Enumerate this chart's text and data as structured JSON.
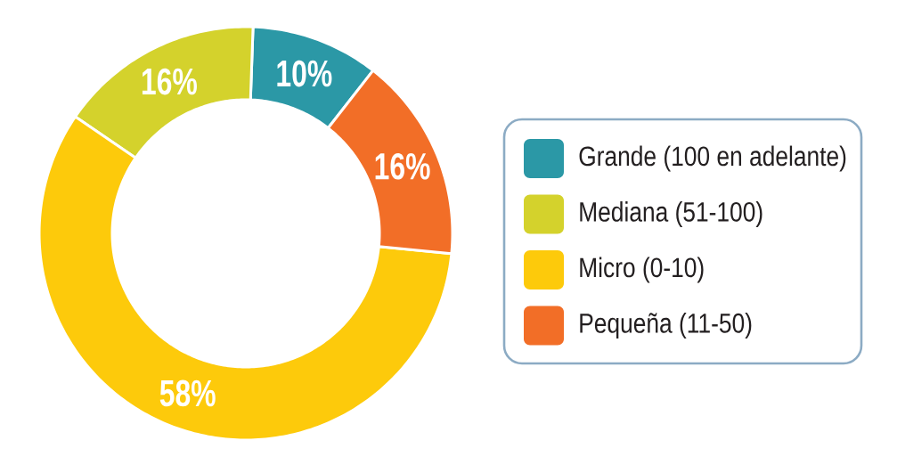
{
  "chart_data": {
    "type": "donut",
    "categories": [
      "Grande (100 en adelante)",
      "Mediana (51-100)",
      "Micro (0-10)",
      "Pequeña (11-50)"
    ],
    "values": [
      10,
      16,
      58,
      16
    ],
    "colors": [
      "#2b98a6",
      "#d4d22c",
      "#fdca0b",
      "#f26e27"
    ],
    "value_labels": [
      "10%",
      "16%",
      "58%",
      "16%"
    ],
    "legend": "right"
  }
}
